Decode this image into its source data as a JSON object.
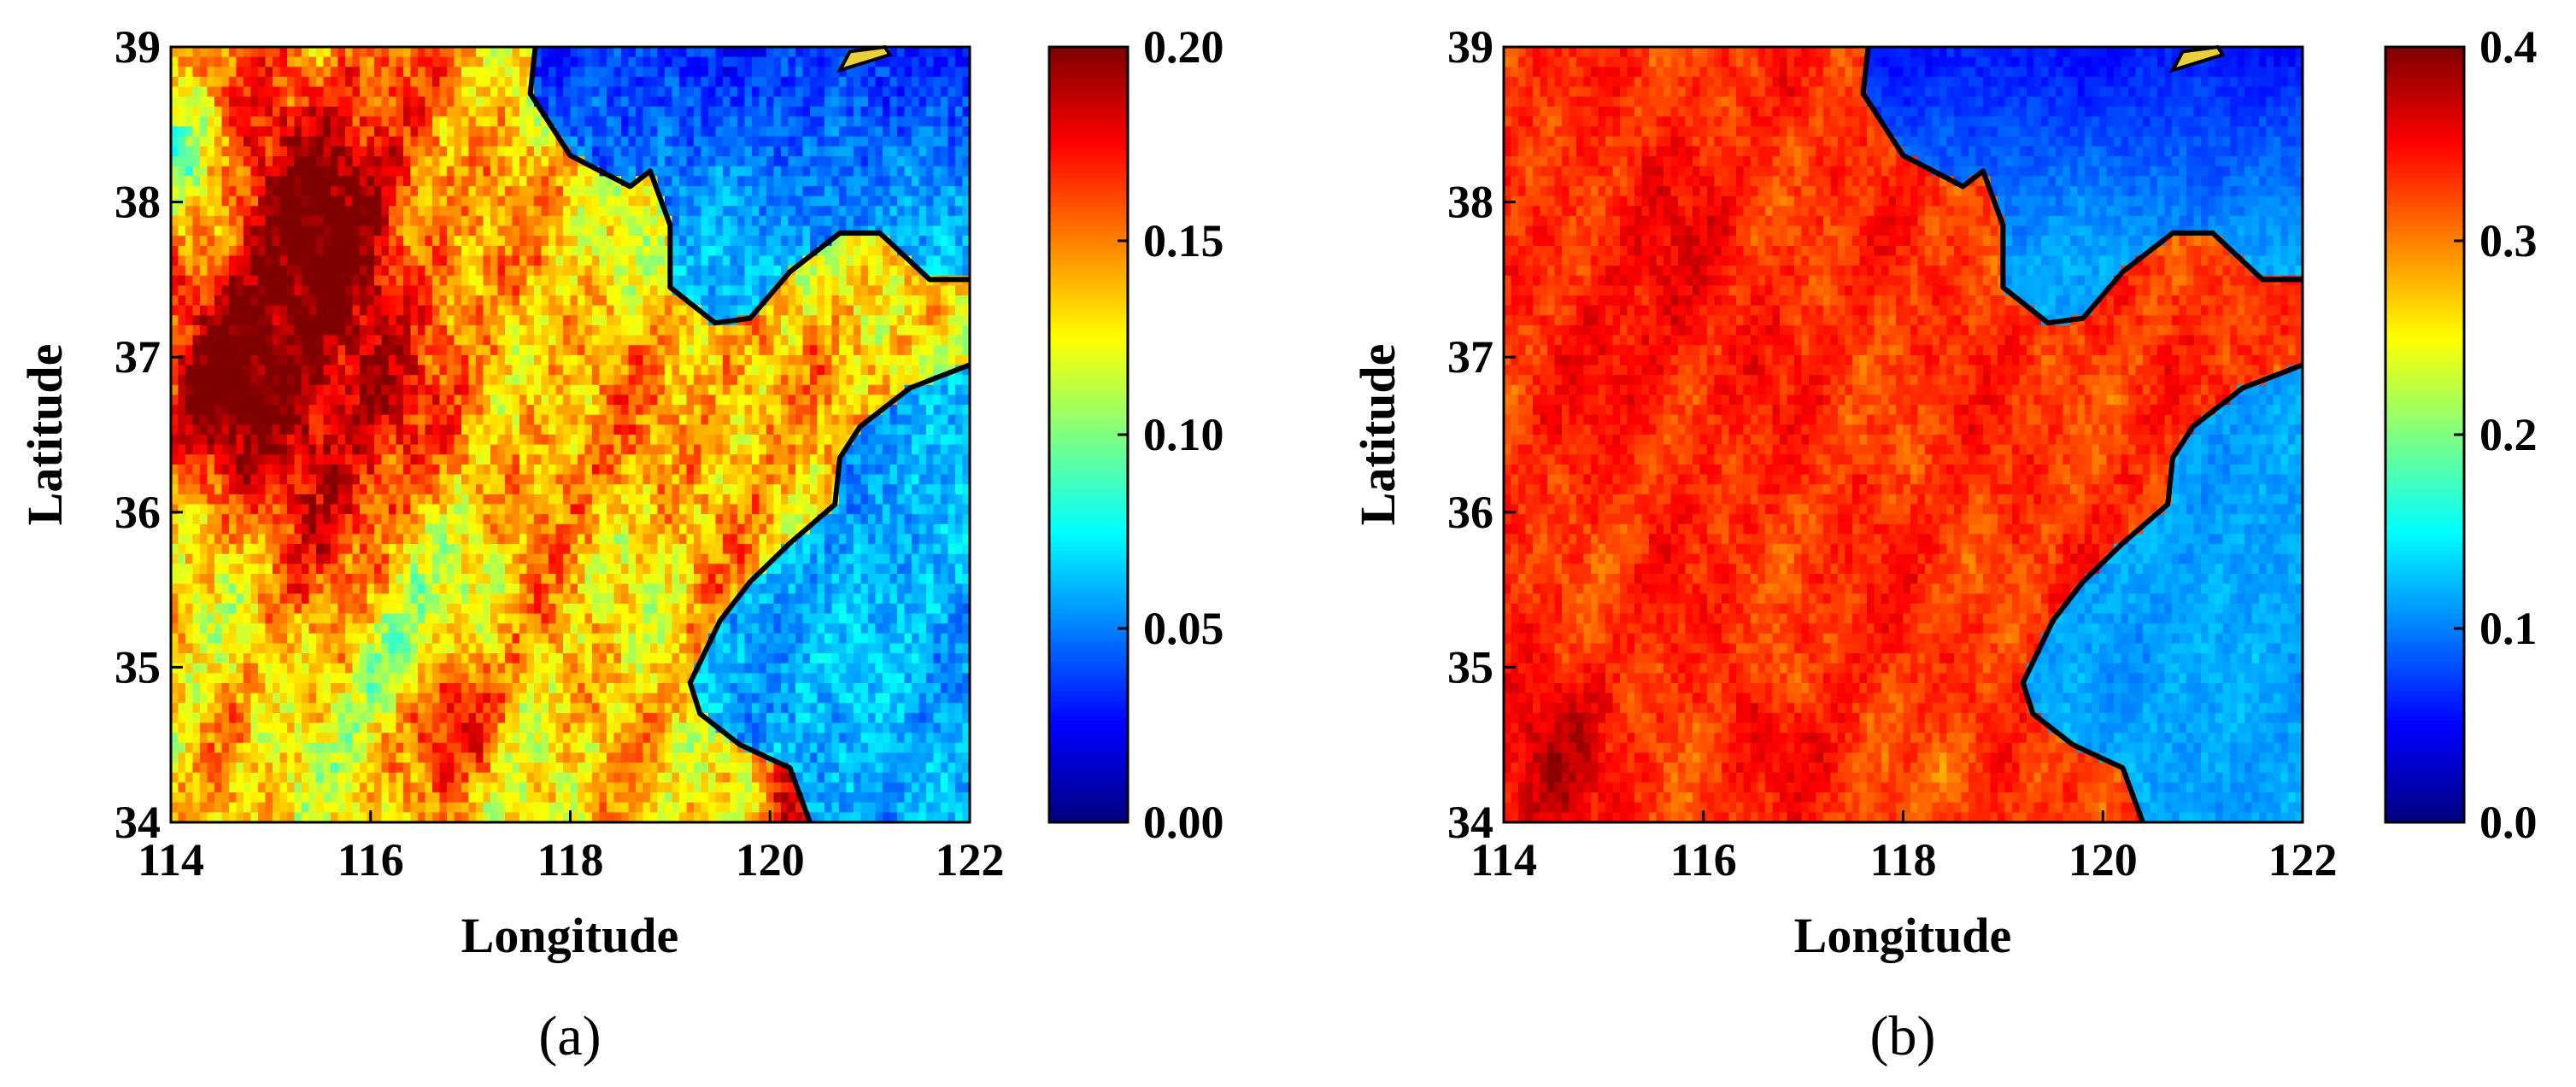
{
  "chart_data": [
    {
      "type": "heatmap",
      "id": "a",
      "caption": "(a)",
      "xlabel": "Longitude",
      "ylabel": "Latitude",
      "xlim": [
        114,
        122
      ],
      "ylim": [
        34,
        39
      ],
      "xticks": [
        "114",
        "116",
        "118",
        "120",
        "122"
      ],
      "yticks": [
        "34",
        "35",
        "36",
        "37",
        "38",
        "39"
      ],
      "colorbar": {
        "range": [
          0.0,
          0.2
        ],
        "ticks": [
          "0.00",
          "0.05",
          "0.10",
          "0.15",
          "0.20"
        ],
        "colormap": "jet"
      },
      "field": {
        "land_base": 0.13,
        "sea_base": 0.06,
        "sea_north_base": 0.035,
        "noise": 0.022,
        "hotspots": [
          {
            "lon": 115.4,
            "lat": 37.8,
            "r": 1.3,
            "v": 0.07
          },
          {
            "lon": 115.5,
            "lat": 36.4,
            "r": 0.9,
            "v": 0.04
          },
          {
            "lon": 117.6,
            "lat": 36.0,
            "r": 1.0,
            "v": 0.02
          },
          {
            "lon": 114.4,
            "lat": 36.8,
            "r": 0.6,
            "v": 0.04
          },
          {
            "lon": 120.3,
            "lat": 34.3,
            "r": 0.5,
            "v": 0.05
          },
          {
            "lon": 116.9,
            "lat": 34.7,
            "r": 0.5,
            "v": 0.04
          },
          {
            "lon": 119.6,
            "lat": 36.7,
            "r": 0.8,
            "v": 0.02
          }
        ],
        "coldspots": [
          {
            "lon": 117.1,
            "lat": 35.6,
            "r": 0.6,
            "v": 0.03
          },
          {
            "lon": 116.2,
            "lat": 35.0,
            "r": 0.4,
            "v": 0.03
          },
          {
            "lon": 114.1,
            "lat": 38.3,
            "r": 0.5,
            "v": 0.05
          }
        ]
      }
    },
    {
      "type": "heatmap",
      "id": "b",
      "caption": "(b)",
      "xlabel": "Longitude",
      "ylabel": "Latitude",
      "xlim": [
        114,
        122
      ],
      "ylim": [
        34,
        39
      ],
      "xticks": [
        "114",
        "116",
        "118",
        "120",
        "122"
      ],
      "yticks": [
        "34",
        "35",
        "36",
        "37",
        "38",
        "39"
      ],
      "colorbar": {
        "range": [
          0.0,
          0.4
        ],
        "ticks": [
          "0.0",
          "0.1",
          "0.2",
          "0.3",
          "0.4"
        ],
        "colormap": "jet"
      },
      "field": {
        "land_base": 0.33,
        "sea_base": 0.115,
        "sea_north_base": 0.06,
        "noise": 0.02,
        "hotspots": [
          {
            "lon": 114.4,
            "lat": 34.4,
            "r": 0.6,
            "v": 0.04
          },
          {
            "lon": 115.6,
            "lat": 37.4,
            "r": 1.0,
            "v": 0.02
          },
          {
            "lon": 116.8,
            "lat": 34.8,
            "r": 0.5,
            "v": 0.03
          }
        ],
        "coldspots": [
          {
            "lon": 116.8,
            "lat": 34.9,
            "r": 0.3,
            "v": 0.05
          },
          {
            "lon": 118.5,
            "lat": 34.3,
            "r": 0.3,
            "v": 0.03
          }
        ]
      }
    }
  ],
  "coastline": {
    "bohai_bay": [
      [
        117.65,
        39.0
      ],
      [
        117.6,
        38.7
      ],
      [
        118.0,
        38.3
      ],
      [
        118.6,
        38.1
      ],
      [
        118.8,
        38.2
      ],
      [
        119.0,
        37.85
      ],
      [
        119.0,
        37.45
      ],
      [
        119.45,
        37.22
      ],
      [
        119.8,
        37.25
      ],
      [
        120.2,
        37.55
      ],
      [
        120.7,
        37.8
      ],
      [
        121.1,
        37.8
      ],
      [
        121.6,
        37.5
      ],
      [
        122.0,
        37.5
      ]
    ],
    "yellow_sea": [
      [
        122.0,
        36.95
      ],
      [
        121.4,
        36.8
      ],
      [
        120.9,
        36.55
      ],
      [
        120.7,
        36.35
      ],
      [
        120.65,
        36.05
      ],
      [
        120.2,
        35.8
      ],
      [
        119.8,
        35.55
      ],
      [
        119.5,
        35.3
      ],
      [
        119.2,
        34.9
      ],
      [
        119.3,
        34.7
      ],
      [
        119.7,
        34.5
      ],
      [
        120.2,
        34.35
      ],
      [
        120.4,
        34.0
      ]
    ],
    "islands": [
      [
        [
          120.7,
          38.85
        ],
        [
          120.95,
          38.9
        ],
        [
          121.2,
          38.95
        ],
        [
          121.15,
          39.0
        ],
        [
          120.8,
          38.97
        ]
      ]
    ]
  }
}
